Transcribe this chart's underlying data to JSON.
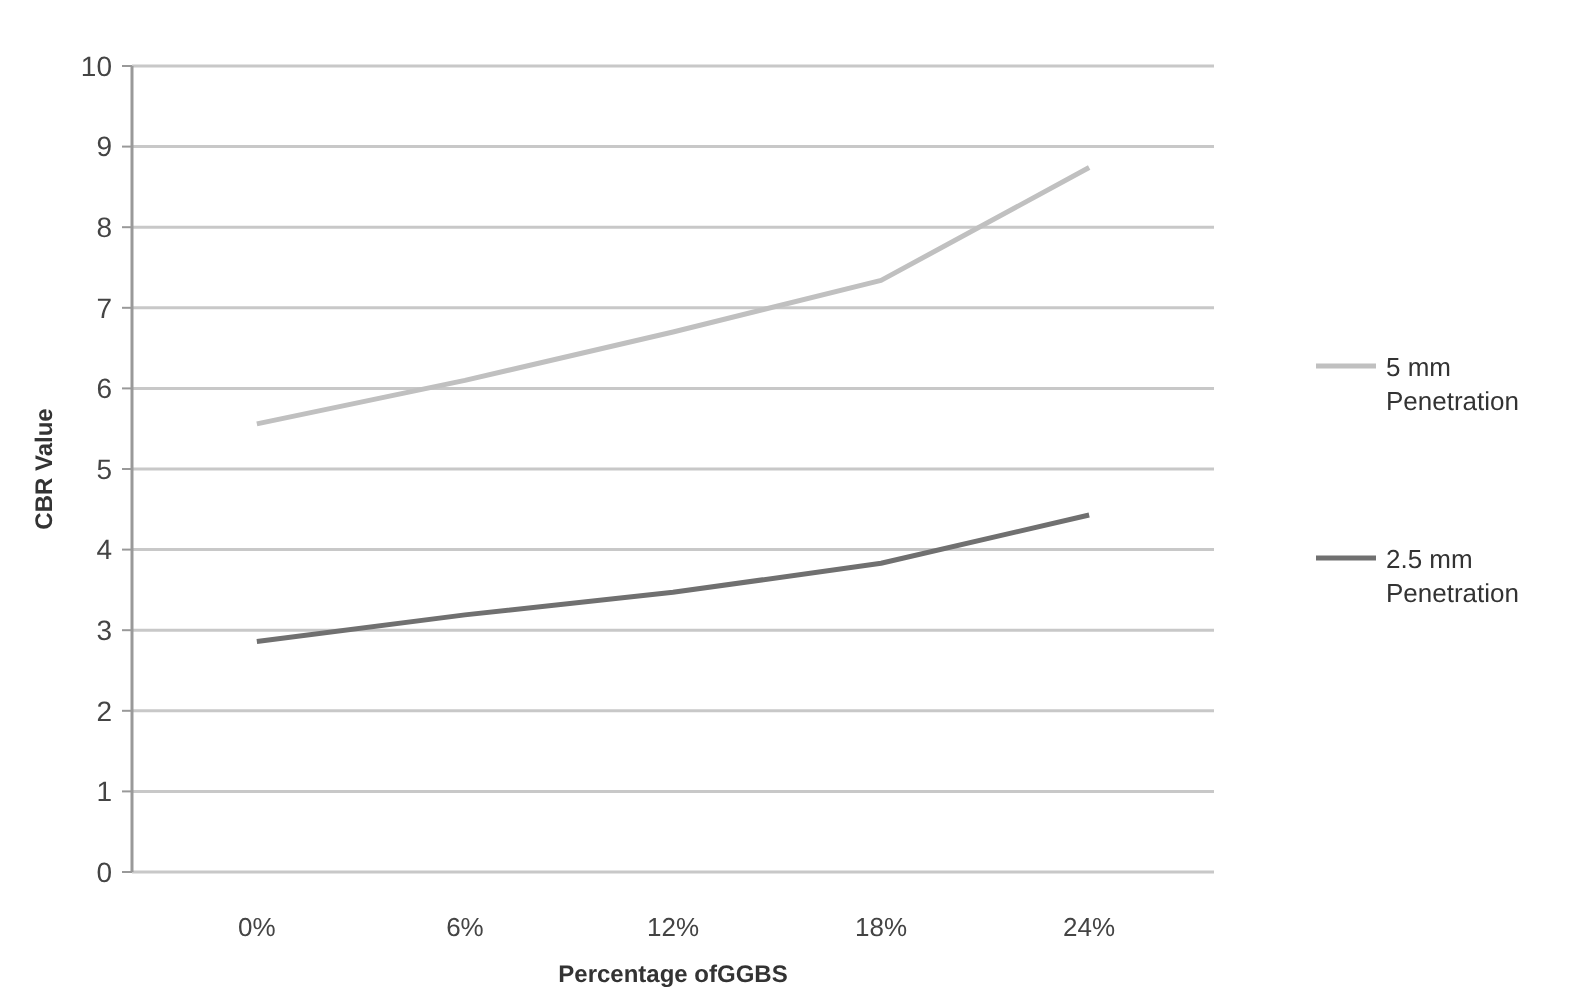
{
  "chart_data": {
    "type": "line",
    "xlabel": "Percentage ofGGBS",
    "ylabel": "CBR Value",
    "categories": [
      "0%",
      "6%",
      "12%",
      "18%",
      "24%"
    ],
    "series": [
      {
        "name": "5 mm Penetration",
        "color": "#c0c0c0",
        "values": [
          5.56,
          6.1,
          6.7,
          7.34,
          8.74
        ]
      },
      {
        "name": "2.5 mm Penetration",
        "color": "#707070",
        "values": [
          2.86,
          3.19,
          3.47,
          3.83,
          4.43
        ]
      }
    ],
    "ylim": [
      0,
      10
    ],
    "yticks": [
      0,
      1,
      2,
      3,
      4,
      5,
      6,
      7,
      8,
      9,
      10
    ],
    "grid": "y",
    "legend": "right",
    "marker": "none",
    "line_style": "solid"
  }
}
